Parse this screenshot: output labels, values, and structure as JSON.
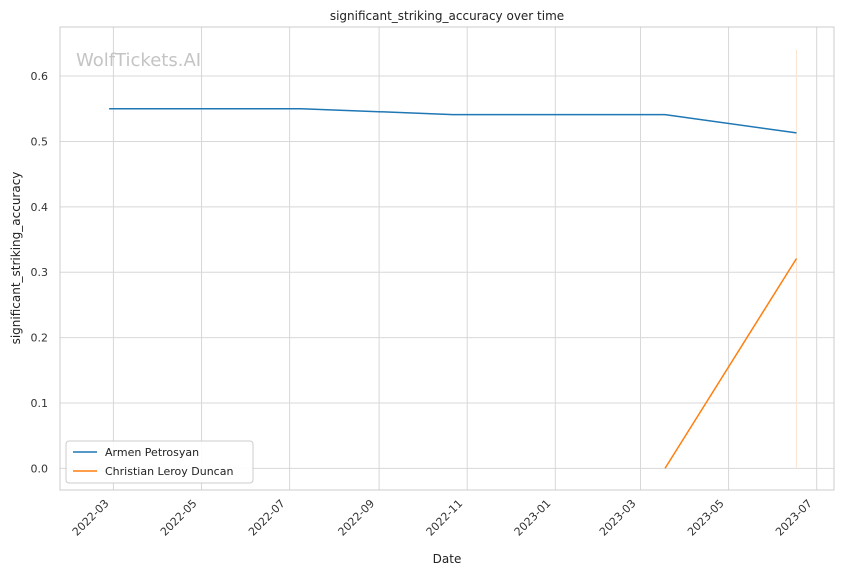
{
  "chart_data": {
    "type": "line",
    "title": "significant_striking_accuracy over time",
    "xlabel": "Date",
    "ylabel": "significant_striking_accuracy",
    "watermark": "WolfTickets.AI",
    "x_ticks": [
      "2022-03",
      "2022-05",
      "2022-07",
      "2022-09",
      "2022-11",
      "2023-01",
      "2023-03",
      "2023-05",
      "2023-07"
    ],
    "y_ticks": [
      "0.0",
      "0.1",
      "0.2",
      "0.3",
      "0.4",
      "0.5",
      "0.6"
    ],
    "xlim": [
      "2022-01-23",
      "2023-07-13"
    ],
    "ylim": [
      -0.033,
      0.675
    ],
    "grid": true,
    "legend_position": "lower-left",
    "series": [
      {
        "name": "Armen Petrosyan",
        "color": "#1f77b4",
        "points": [
          {
            "x": "2022-02-26",
            "y": 0.55
          },
          {
            "x": "2022-07-09",
            "y": 0.55
          },
          {
            "x": "2022-10-22",
            "y": 0.541
          },
          {
            "x": "2023-03-18",
            "y": 0.541
          },
          {
            "x": "2023-06-17",
            "y": 0.513
          }
        ]
      },
      {
        "name": "Christian Leroy Duncan",
        "color": "#ff7f0e",
        "points": [
          {
            "x": "2023-03-18",
            "y": 0.0
          },
          {
            "x": "2023-06-17",
            "y": 0.321
          }
        ]
      }
    ],
    "marker_line": {
      "x": "2023-06-17",
      "y_range": [
        0.0,
        0.64
      ],
      "color": "#fbe3cf"
    }
  }
}
